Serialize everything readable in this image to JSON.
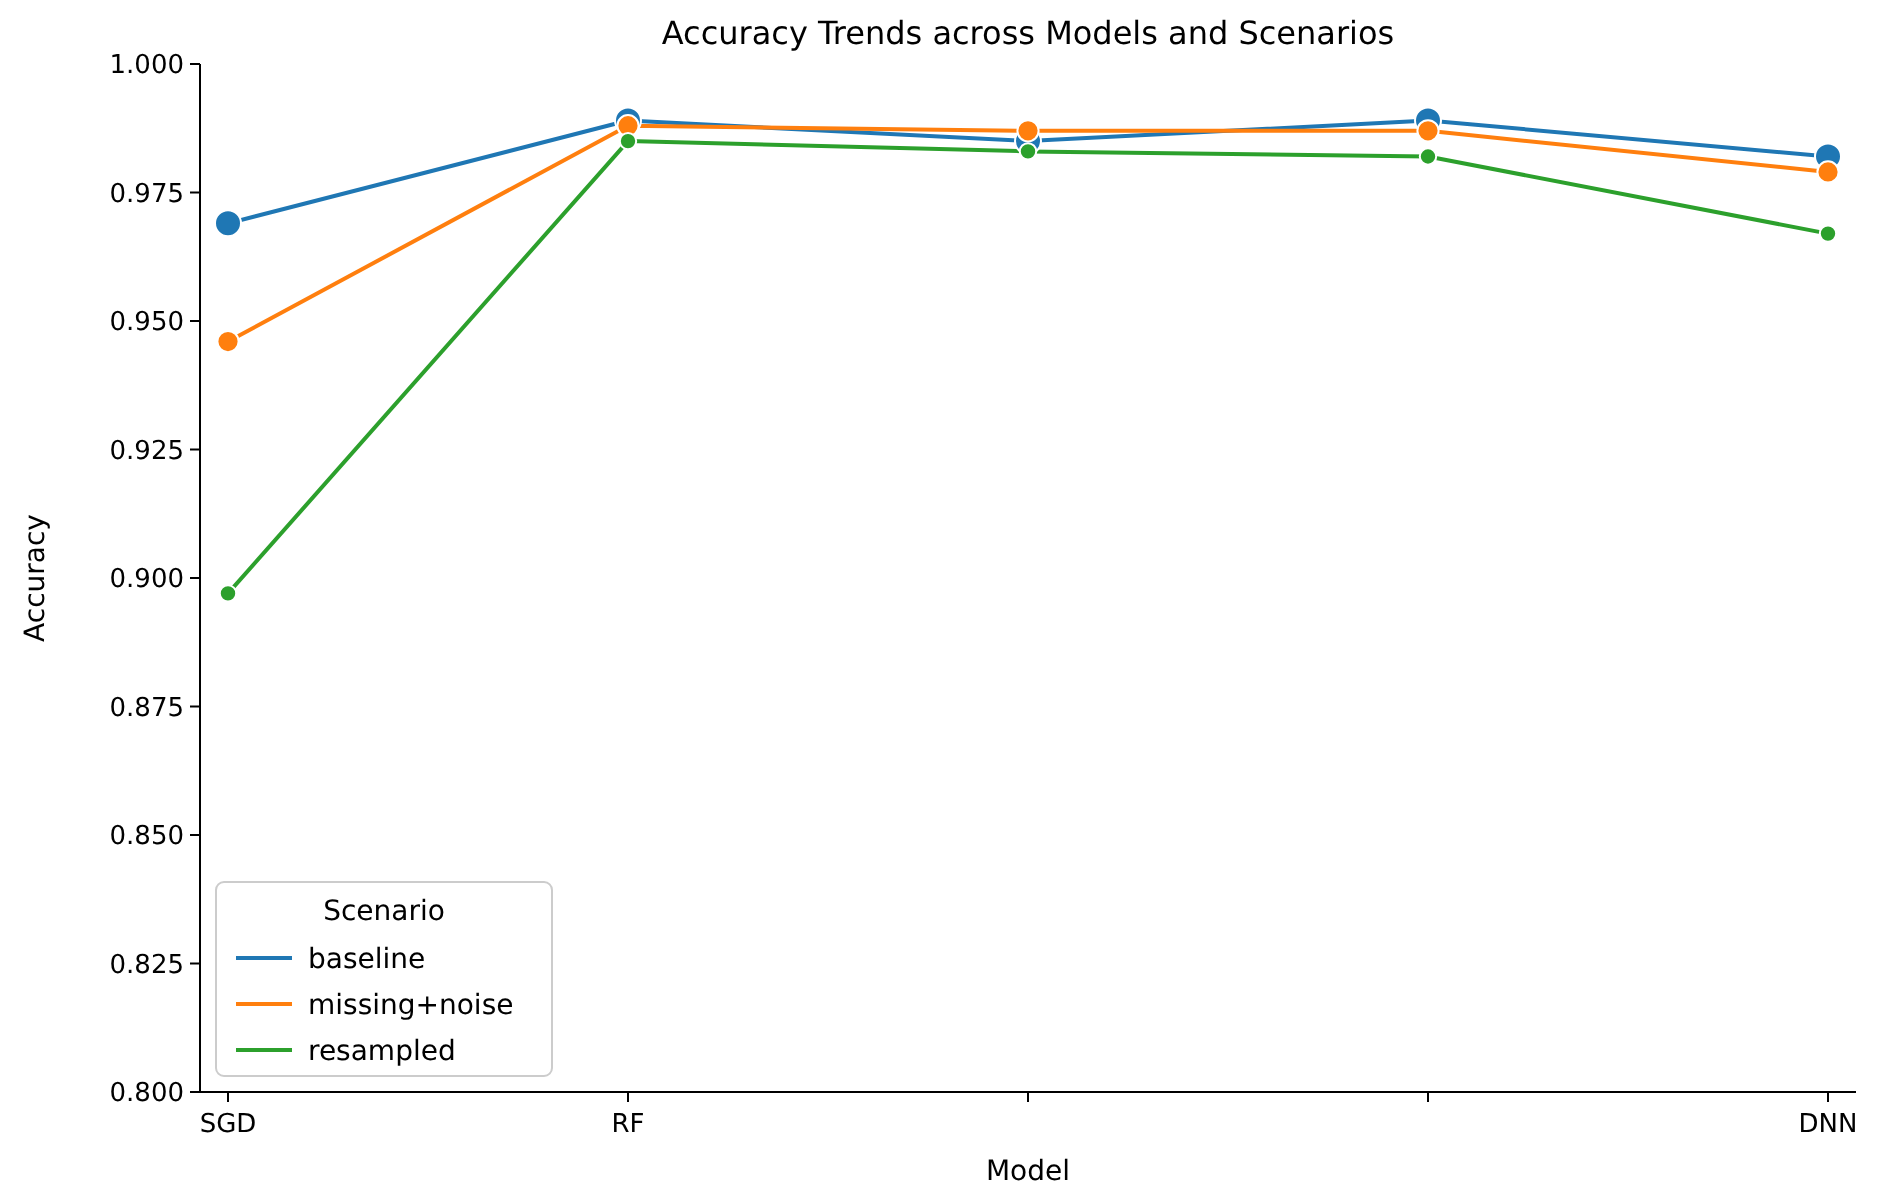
{
  "chart_data": {
    "type": "line",
    "title": "Accuracy Trends across Models and Scenarios",
    "xlabel": "Model",
    "ylabel": "Accuracy",
    "legend_title": "Scenario",
    "categories": [
      "SGD",
      "RF",
      null,
      null,
      "DNN"
    ],
    "series": [
      {
        "name": "baseline",
        "color": "#1f77b4",
        "values": [
          0.969,
          0.989,
          0.985,
          0.989,
          0.982
        ]
      },
      {
        "name": "missing+noise",
        "color": "#ff7f0e",
        "values": [
          0.946,
          0.988,
          0.987,
          0.987,
          0.979
        ]
      },
      {
        "name": "resampled",
        "color": "#2ca02c",
        "values": [
          0.897,
          0.985,
          0.983,
          0.982,
          0.967
        ]
      }
    ],
    "ylim": [
      0.8,
      1.0
    ],
    "yticks": [
      {
        "value": 0.8,
        "label": "0.800"
      },
      {
        "value": 0.825,
        "label": "0.825"
      },
      {
        "value": 0.85,
        "label": "0.850"
      },
      {
        "value": 0.875,
        "label": "0.875"
      },
      {
        "value": 0.9,
        "label": "0.900"
      },
      {
        "value": 0.925,
        "label": "0.925"
      },
      {
        "value": 0.95,
        "label": "0.950"
      },
      {
        "value": 0.975,
        "label": "0.975"
      },
      {
        "value": 1.0,
        "label": "1.000"
      }
    ],
    "marker": "circle",
    "line_style": "solid",
    "legend": "bottom left",
    "grid": false
  }
}
